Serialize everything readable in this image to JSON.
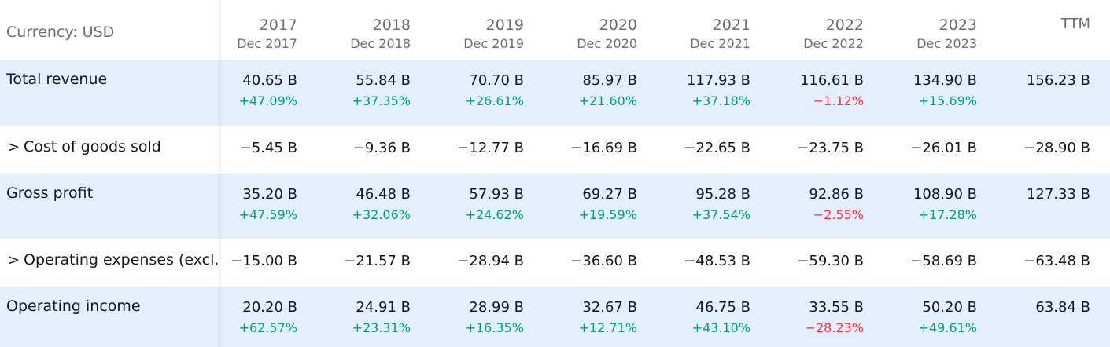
{
  "header": {
    "currency_label": "Currency: USD",
    "ttm_label": "TTM",
    "columns": [
      {
        "year": "2017",
        "period": "Dec 2017"
      },
      {
        "year": "2018",
        "period": "Dec 2018"
      },
      {
        "year": "2019",
        "period": "Dec 2019"
      },
      {
        "year": "2020",
        "period": "Dec 2020"
      },
      {
        "year": "2021",
        "period": "Dec 2021"
      },
      {
        "year": "2022",
        "period": "Dec 2022"
      },
      {
        "year": "2023",
        "period": "Dec 2023"
      }
    ]
  },
  "rows": [
    {
      "label": "Total revenue",
      "values": [
        "40.65 B",
        "55.84 B",
        "70.70 B",
        "85.97 B",
        "117.93 B",
        "116.61 B",
        "134.90 B"
      ],
      "ttm": "156.23 B",
      "changes": [
        "+47.09%",
        "+37.35%",
        "+26.61%",
        "+21.60%",
        "+37.18%",
        "−1.12%",
        "+15.69%"
      ]
    },
    {
      "label": "Cost of goods sold",
      "chevron": ">",
      "values": [
        "−5.45 B",
        "−9.36 B",
        "−12.77 B",
        "−16.69 B",
        "−22.65 B",
        "−23.75 B",
        "−26.01 B"
      ],
      "ttm": "−28.90 B"
    },
    {
      "label": "Gross profit",
      "values": [
        "35.20 B",
        "46.48 B",
        "57.93 B",
        "69.27 B",
        "95.28 B",
        "92.86 B",
        "108.90 B"
      ],
      "ttm": "127.33 B",
      "changes": [
        "+47.59%",
        "+32.06%",
        "+24.62%",
        "+19.59%",
        "+37.54%",
        "−2.55%",
        "+17.28%"
      ]
    },
    {
      "label": "Operating expenses (excl.",
      "chevron": ">",
      "values": [
        "−15.00 B",
        "−21.57 B",
        "−28.94 B",
        "−36.60 B",
        "−48.53 B",
        "−59.30 B",
        "−58.69 B"
      ],
      "ttm": "−63.48 B"
    },
    {
      "label": "Operating income",
      "values": [
        "20.20 B",
        "24.91 B",
        "28.99 B",
        "32.67 B",
        "46.75 B",
        "33.55 B",
        "50.20 B"
      ],
      "ttm": "63.84 B",
      "changes": [
        "+62.57%",
        "+23.31%",
        "+16.35%",
        "+12.71%",
        "+43.10%",
        "−28.23%",
        "+49.61%"
      ]
    }
  ],
  "colors": {
    "positive": "#089981",
    "negative": "#f23645",
    "row_shade": "#e3effd"
  }
}
